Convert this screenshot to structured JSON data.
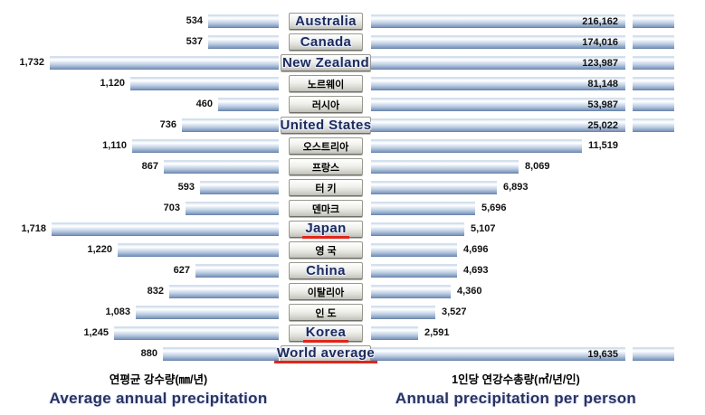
{
  "chart_data": {
    "type": "bar",
    "subtype": "bilateral-horizontal-bar",
    "title": "",
    "left_axis": {
      "label_ko": "연평균 강수량(㎜/년)",
      "label_en": "Average annual precipitation",
      "unit": "mm/year",
      "range": [
        0,
        1850
      ],
      "direction": "right-to-left"
    },
    "right_axis": {
      "label_ko": "1인당 연강수총량(㎥/년/인)",
      "label_en": "Annual precipitation per person",
      "unit": "m3/year/person",
      "visible_range": [
        0,
        16500
      ],
      "note": "bars exceeding the visible range are drawn with a break and continuation cap",
      "direction": "left-to-right"
    },
    "legend": "none",
    "grid": "off",
    "rows": [
      {
        "country": "Australia",
        "avg_precip_mm_yr": 534,
        "per_person_m3_yr": 216162,
        "highlight": false
      },
      {
        "country": "Canada",
        "avg_precip_mm_yr": 537,
        "per_person_m3_yr": 174016,
        "highlight": false
      },
      {
        "country": "New Zealand",
        "avg_precip_mm_yr": 1732,
        "per_person_m3_yr": 123987,
        "highlight": false
      },
      {
        "country": "노르웨이",
        "avg_precip_mm_yr": 1120,
        "per_person_m3_yr": 81148,
        "highlight": false
      },
      {
        "country": "러시아",
        "avg_precip_mm_yr": 460,
        "per_person_m3_yr": 53987,
        "highlight": false
      },
      {
        "country": "United States",
        "avg_precip_mm_yr": 736,
        "per_person_m3_yr": 25022,
        "highlight": false
      },
      {
        "country": "오스트리아",
        "avg_precip_mm_yr": 1110,
        "per_person_m3_yr": 11519,
        "highlight": false
      },
      {
        "country": "프랑스",
        "avg_precip_mm_yr": 867,
        "per_person_m3_yr": 8069,
        "highlight": false
      },
      {
        "country": "터 키",
        "avg_precip_mm_yr": 593,
        "per_person_m3_yr": 6893,
        "highlight": false
      },
      {
        "country": "덴마크",
        "avg_precip_mm_yr": 703,
        "per_person_m3_yr": 5696,
        "highlight": false
      },
      {
        "country": "Japan",
        "avg_precip_mm_yr": 1718,
        "per_person_m3_yr": 5107,
        "highlight": true
      },
      {
        "country": "영 국",
        "avg_precip_mm_yr": 1220,
        "per_person_m3_yr": 4696,
        "highlight": false
      },
      {
        "country": "China",
        "avg_precip_mm_yr": 627,
        "per_person_m3_yr": 4693,
        "highlight": false
      },
      {
        "country": "이탈리아",
        "avg_precip_mm_yr": 832,
        "per_person_m3_yr": 4360,
        "highlight": false
      },
      {
        "country": "인 도",
        "avg_precip_mm_yr": 1083,
        "per_person_m3_yr": 3527,
        "highlight": false
      },
      {
        "country": "Korea",
        "avg_precip_mm_yr": 1245,
        "per_person_m3_yr": 2591,
        "highlight": true
      },
      {
        "country": "World average",
        "avg_precip_mm_yr": 880,
        "per_person_m3_yr": 19635,
        "highlight": true
      }
    ],
    "colors": {
      "bar_blue_light": "#eef4fa",
      "bar_blue_dark": "#7b94ba",
      "button_gray": "#dcdcd6",
      "underline_red": "#e0261a",
      "label_navy": "#1e2a5a",
      "value_text": "#111111",
      "background": "#ffffff"
    }
  }
}
